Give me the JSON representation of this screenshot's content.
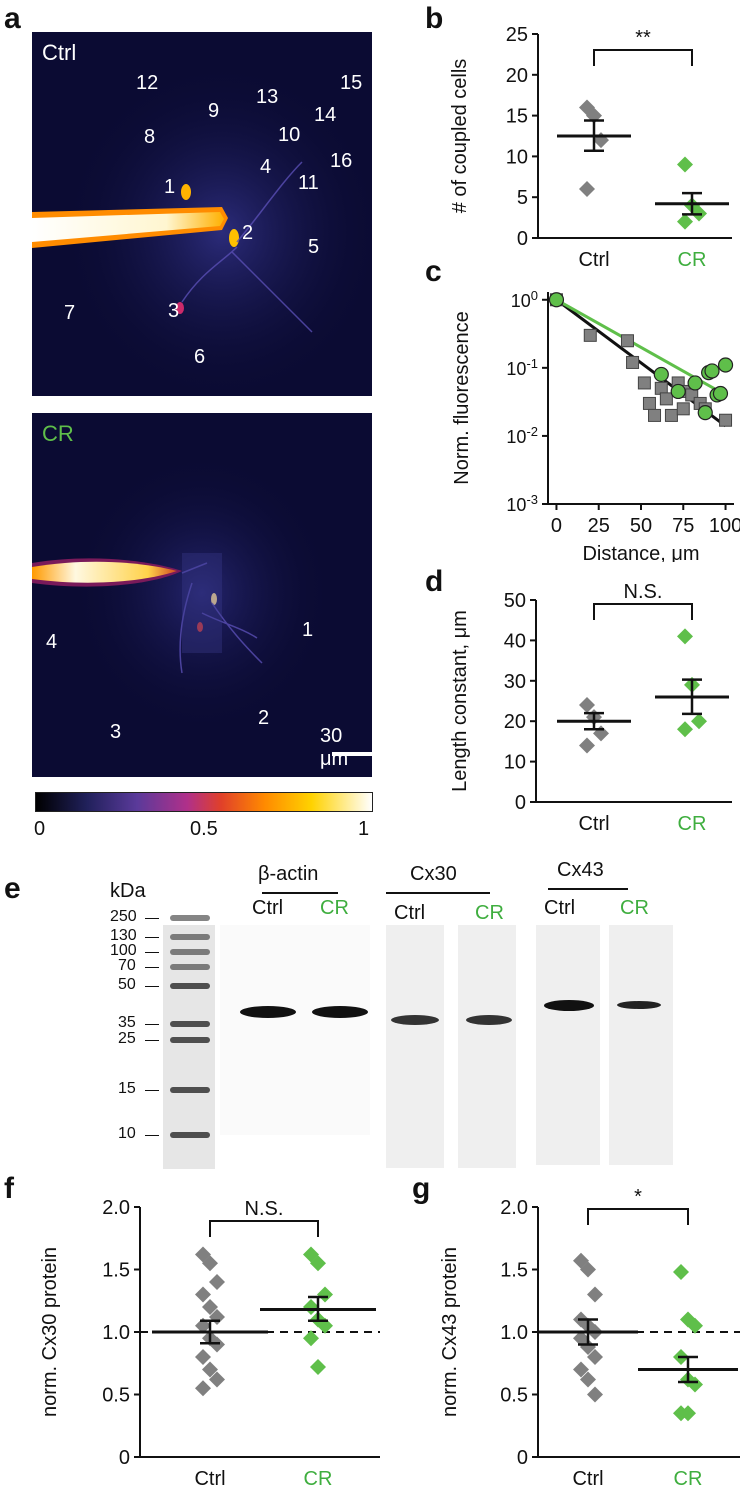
{
  "colors": {
    "ctrl": "#808080",
    "cr": "#5fbf4a",
    "cr_text": "#3fae3f"
  },
  "panels": {
    "a": {
      "letter": "a",
      "ctrl_title": "Ctrl",
      "cr_title": "CR",
      "ctrl_labels": [
        "12",
        "9",
        "13",
        "15",
        "14",
        "8",
        "10",
        "16",
        "4",
        "11",
        "1",
        "2",
        "5",
        "7",
        "3",
        "6"
      ],
      "cr_labels": [
        "1",
        "4",
        "2",
        "3"
      ],
      "scalebar": "30 μm",
      "colorbar_ticks": [
        "0",
        "0.5",
        "1"
      ]
    },
    "b": {
      "letter": "b"
    },
    "c": {
      "letter": "c"
    },
    "d": {
      "letter": "d"
    },
    "e": {
      "letter": "e",
      "kda": "kDa",
      "ladder": [
        "250",
        "130",
        "100",
        "70",
        "50",
        "35",
        "25",
        "15",
        "10"
      ],
      "groups": [
        {
          "name": "β-actin",
          "lanes": [
            "Ctrl",
            "CR"
          ]
        },
        {
          "name": "Cx30",
          "lanes": [
            "Ctrl",
            "CR"
          ]
        },
        {
          "name": "Cx43",
          "lanes": [
            "Ctrl",
            "CR"
          ]
        }
      ]
    },
    "f": {
      "letter": "f"
    },
    "g": {
      "letter": "g"
    }
  },
  "chart_data": [
    {
      "id": "b",
      "type": "scatter",
      "ylabel": "# of coupled cells",
      "ylim": [
        0,
        25
      ],
      "yticks": [
        "0",
        "5",
        "10",
        "15",
        "20",
        "25"
      ],
      "categories": [
        "Ctrl",
        "CR"
      ],
      "significance": "**",
      "series": [
        {
          "name": "Ctrl",
          "values": [
            16,
            15,
            12,
            6
          ],
          "mean": 12.5,
          "sem_low": 10.7,
          "sem_high": 14.4
        },
        {
          "name": "CR",
          "values": [
            9,
            4,
            3,
            2
          ],
          "mean": 4.2,
          "sem_low": 2.9,
          "sem_high": 5.5
        }
      ]
    },
    {
      "id": "c",
      "type": "scatter",
      "yscale": "log",
      "xlabel": "Distance, μm",
      "ylabel": "Norm. fluorescence",
      "xlim": [
        -5,
        105
      ],
      "xticks": [
        "0",
        "25",
        "50",
        "75",
        "100"
      ],
      "ylim": [
        0.001,
        1.3
      ],
      "yticks": [
        "10^0",
        "10^-1",
        "10^-2",
        "10^-3"
      ],
      "series": [
        {
          "name": "Ctrl",
          "points": [
            [
              0,
              1.0
            ],
            [
              20,
              0.3
            ],
            [
              42,
              0.25
            ],
            [
              45,
              0.12
            ],
            [
              52,
              0.06
            ],
            [
              55,
              0.03
            ],
            [
              58,
              0.02
            ],
            [
              62,
              0.05
            ],
            [
              65,
              0.035
            ],
            [
              68,
              0.02
            ],
            [
              72,
              0.06
            ],
            [
              75,
              0.025
            ],
            [
              78,
              0.045
            ],
            [
              80,
              0.04
            ],
            [
              85,
              0.03
            ],
            [
              88,
              0.025
            ],
            [
              100,
              0.017
            ]
          ],
          "fit": [
            [
              0,
              1.0
            ],
            [
              100,
              0.014
            ]
          ]
        },
        {
          "name": "CR",
          "points": [
            [
              0,
              1.0
            ],
            [
              62,
              0.08
            ],
            [
              72,
              0.045
            ],
            [
              82,
              0.06
            ],
            [
              88,
              0.022
            ],
            [
              90,
              0.085
            ],
            [
              92,
              0.09
            ],
            [
              95,
              0.04
            ],
            [
              97,
              0.042
            ],
            [
              100,
              0.11
            ]
          ],
          "fit": [
            [
              0,
              1.0
            ],
            [
              100,
              0.04
            ]
          ]
        }
      ]
    },
    {
      "id": "d",
      "type": "scatter",
      "ylabel": "Length constant, μm",
      "ylim": [
        0,
        50
      ],
      "yticks": [
        "0",
        "10",
        "20",
        "30",
        "40",
        "50"
      ],
      "categories": [
        "Ctrl",
        "CR"
      ],
      "significance": "N.S.",
      "series": [
        {
          "name": "Ctrl",
          "values": [
            24,
            21,
            17,
            14
          ],
          "mean": 20.0,
          "sem_low": 18.0,
          "sem_high": 22.0
        },
        {
          "name": "CR",
          "values": [
            41,
            29,
            20,
            18
          ],
          "mean": 26.0,
          "sem_low": 21.8,
          "sem_high": 30.3
        }
      ]
    },
    {
      "id": "f",
      "type": "scatter",
      "ylabel": "norm. Cx30 protein",
      "ylim": [
        0,
        2.0
      ],
      "yticks": [
        "0",
        "0.5",
        "1.0",
        "1.5",
        "2.0"
      ],
      "categories": [
        "Ctrl",
        "CR"
      ],
      "significance": "N.S.",
      "reference": 1.0,
      "series": [
        {
          "name": "Ctrl",
          "values": [
            1.62,
            1.55,
            1.4,
            1.3,
            1.2,
            1.12,
            1.05,
            0.95,
            0.9,
            0.8,
            0.7,
            0.62,
            0.55
          ],
          "mean": 1.0,
          "sem_low": 0.91,
          "sem_high": 1.09
        },
        {
          "name": "CR",
          "values": [
            1.62,
            1.55,
            1.3,
            1.2,
            1.1,
            1.05,
            0.95,
            0.72
          ],
          "mean": 1.18,
          "sem_low": 1.09,
          "sem_high": 1.28
        }
      ]
    },
    {
      "id": "g",
      "type": "scatter",
      "ylabel": "norm. Cx43 protein",
      "ylim": [
        0,
        2.0
      ],
      "yticks": [
        "0",
        "0.5",
        "1.0",
        "1.5",
        "2.0"
      ],
      "categories": [
        "Ctrl",
        "CR"
      ],
      "significance": "*",
      "reference": 1.0,
      "series": [
        {
          "name": "Ctrl",
          "values": [
            1.57,
            1.5,
            1.3,
            1.1,
            1.05,
            1.0,
            0.95,
            0.88,
            0.8,
            0.7,
            0.62,
            0.5
          ],
          "mean": 1.0,
          "sem_low": 0.9,
          "sem_high": 1.1
        },
        {
          "name": "CR",
          "values": [
            1.48,
            1.1,
            1.05,
            0.8,
            0.62,
            0.58,
            0.35,
            0.35
          ],
          "mean": 0.7,
          "sem_low": 0.6,
          "sem_high": 0.8
        }
      ]
    }
  ]
}
